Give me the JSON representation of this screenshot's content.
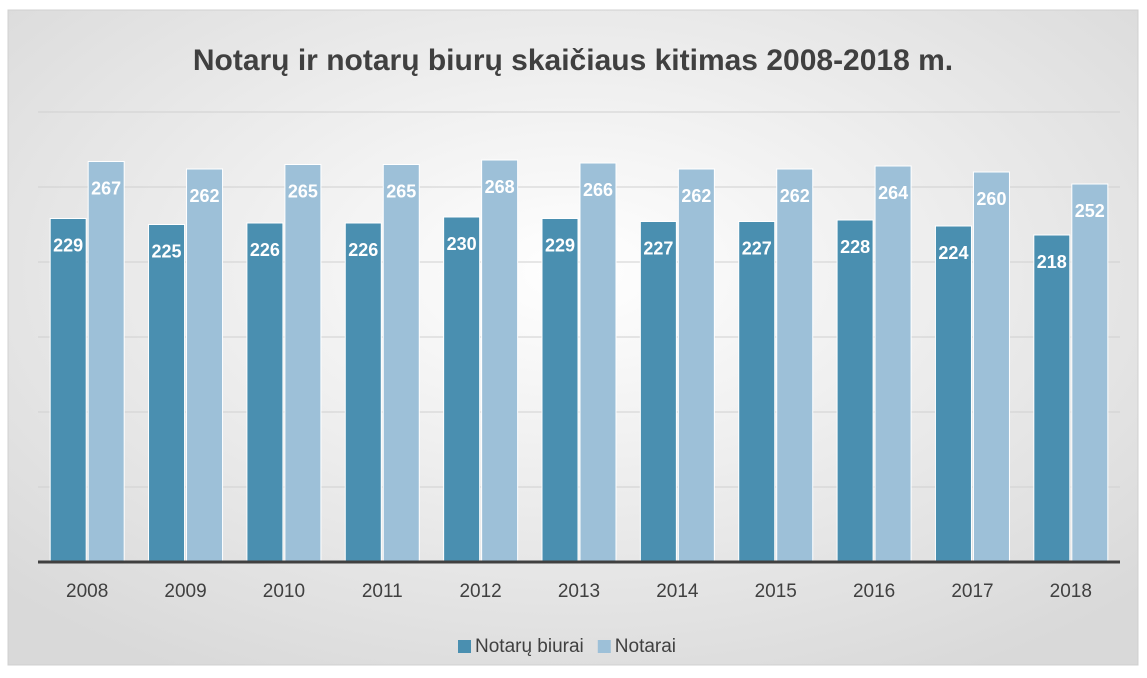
{
  "chart_data": {
    "type": "bar",
    "title": "Notarų ir notarų biurų skaičiaus kitimas 2008-2018 m.",
    "categories": [
      "2008",
      "2009",
      "2010",
      "2011",
      "2012",
      "2013",
      "2014",
      "2015",
      "2016",
      "2017",
      "2018"
    ],
    "series": [
      {
        "name": "Notarų biurai",
        "color": "#4a8fb0",
        "values": [
          229,
          225,
          226,
          226,
          230,
          229,
          227,
          227,
          228,
          224,
          218
        ]
      },
      {
        "name": "Notarai",
        "color": "#9dc0d8",
        "values": [
          267,
          262,
          265,
          265,
          268,
          266,
          262,
          262,
          264,
          260,
          252
        ]
      }
    ],
    "ylim": [
      0,
      300
    ],
    "yticks": [
      0,
      50,
      100,
      150,
      200,
      250,
      300
    ],
    "grid": true,
    "legend": "bottom"
  }
}
